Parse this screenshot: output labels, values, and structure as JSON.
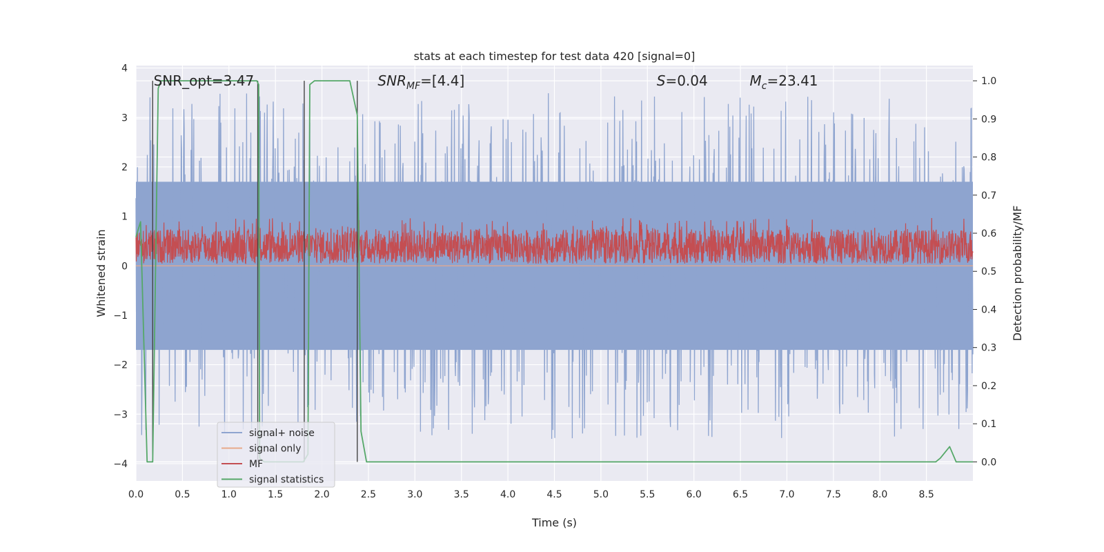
{
  "chart_data": {
    "type": "line",
    "title": "stats at each timestep for test data 420 [signal=0]",
    "xlabel": "Time (s)",
    "ylabel_left": "Whitened strain",
    "ylabel_right": "Detection probability/MF",
    "xlim": [
      0.0,
      9.0
    ],
    "ylim_left": [
      -4.35,
      4.05
    ],
    "ylim_right": [
      -0.05,
      1.04
    ],
    "xticks": [
      0.0,
      0.5,
      1.0,
      1.5,
      2.0,
      2.5,
      3.0,
      3.5,
      4.0,
      4.5,
      5.0,
      5.5,
      6.0,
      6.5,
      7.0,
      7.5,
      8.0,
      8.5
    ],
    "xtick_labels": [
      "0.0",
      "0.5",
      "1.0",
      "1.5",
      "2.0",
      "2.5",
      "3.0",
      "3.5",
      "4.0",
      "4.5",
      "5.0",
      "5.5",
      "6.0",
      "6.5",
      "7.0",
      "7.5",
      "8.0",
      "8.5"
    ],
    "yticks_left": [
      -4,
      -3,
      -2,
      -1,
      0,
      1,
      2,
      3,
      4
    ],
    "ytick_labels_left": [
      "−4",
      "−3",
      "−2",
      "−1",
      "0",
      "1",
      "2",
      "3",
      "4"
    ],
    "yticks_right": [
      0.0,
      0.1,
      0.2,
      0.3,
      0.4,
      0.5,
      0.6,
      0.7,
      0.8,
      0.9,
      1.0
    ],
    "ytick_labels_right": [
      "0.0",
      "0.1",
      "0.2",
      "0.3",
      "0.4",
      "0.5",
      "0.6",
      "0.7",
      "0.8",
      "0.9",
      "1.0"
    ],
    "grid": true,
    "legend_placement": "lower-left",
    "annotations": {
      "snr_opt": "SNR_opt=3.47",
      "snr_mf_italic": "SNR",
      "snr_mf_sub": "MF",
      "snr_mf_rest": "=[4.4]",
      "s_italic": "S",
      "s_rest": "=0.04",
      "mc_italic": "M",
      "mc_sub": "c",
      "mc_rest": "=23.41"
    },
    "vertical_markers_s": [
      0.18,
      1.31,
      1.81,
      2.38
    ],
    "series": [
      {
        "name": "signal+ noise",
        "axis": "left",
        "color": "#8ea4cf",
        "noise_band_approx": [
          -1.7,
          1.7
        ],
        "peak_range_approx": [
          -3.85,
          3.7
        ]
      },
      {
        "name": "signal only",
        "axis": "left",
        "color": "#e8a98a",
        "value": 0.0
      },
      {
        "name": "MF",
        "axis": "right",
        "color": "#c44e52",
        "range_approx": [
          0.52,
          0.61
        ]
      },
      {
        "name": "signal statistics",
        "axis": "right",
        "color": "#55a868",
        "x": [
          0.0,
          0.05,
          0.12,
          0.18,
          0.24,
          0.27,
          1.3,
          1.32,
          1.33,
          1.38,
          1.8,
          1.85,
          1.87,
          1.92,
          2.3,
          2.38,
          2.42,
          2.48,
          2.5,
          8.6,
          8.65,
          8.75,
          8.82,
          9.0
        ],
        "y": [
          0.59,
          0.63,
          0.0,
          0.0,
          0.98,
          1.0,
          1.0,
          0.99,
          0.01,
          0.0,
          0.0,
          0.02,
          0.99,
          1.0,
          1.0,
          0.91,
          0.08,
          0.0,
          0.0,
          0.0,
          0.01,
          0.04,
          0.0,
          0.0
        ]
      }
    ]
  }
}
